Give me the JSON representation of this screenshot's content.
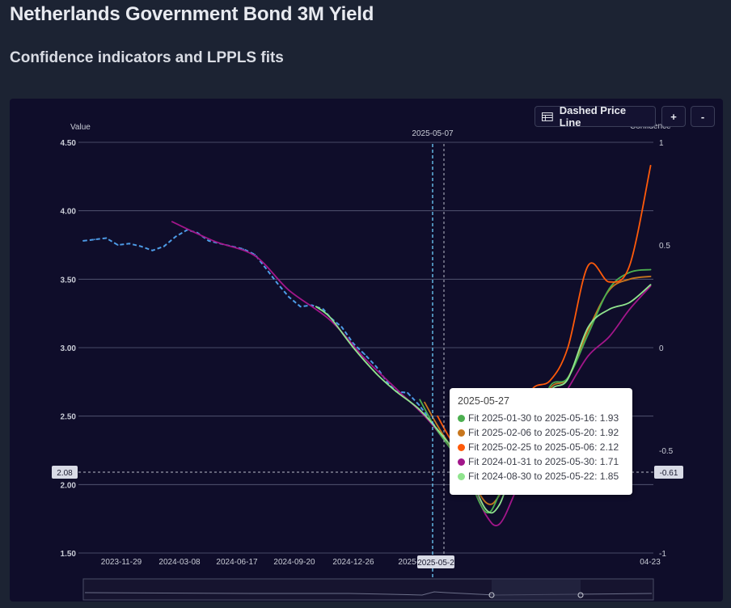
{
  "page": {
    "title": "Netherlands Government Bond 3M Yield",
    "subtitle": "Confidence indicators and LPPLS fits"
  },
  "toolbar": {
    "dashed_label": "Dashed Price Line",
    "zoom_in_label": "+",
    "zoom_out_label": "-",
    "dashed_icon": "table-icon"
  },
  "crosshair": {
    "top_date": "2025-05-07",
    "bottom_date": "2025-05-2",
    "left_value": "2.08",
    "right_value": "-0.61"
  },
  "tooltip": {
    "date": "2025-05-27",
    "rows": [
      {
        "label": "Fit 2025-01-30 to 2025-05-16: 1.93",
        "color": "#4caf50"
      },
      {
        "label": "Fit 2025-02-06 to 2025-05-20: 1.92",
        "color": "#c8771e"
      },
      {
        "label": "Fit 2025-02-25 to 2025-05-06: 2.12",
        "color": "#ff5a0a"
      },
      {
        "label": "Fit 2024-01-31 to 2025-05-30: 1.71",
        "color": "#a2168a"
      },
      {
        "label": "Fit 2024-08-30 to 2025-05-22: 1.85",
        "color": "#90e48e"
      }
    ]
  },
  "chart_data": {
    "type": "line",
    "title": "Netherlands Government Bond 3M Yield",
    "subtitle": "Confidence indicators and LPPLS fits",
    "ylabel": "Value",
    "y2label": "Confidence",
    "ylim": [
      1.5,
      4.5
    ],
    "y2lim": [
      -1,
      1
    ],
    "y_ticks": [
      "4.50",
      "4.00",
      "3.50",
      "3.00",
      "2.50",
      "2.00",
      "1.50"
    ],
    "y2_ticks": [
      "1",
      "0.5",
      "0",
      "-0.5",
      "-1"
    ],
    "x_ticks": [
      "2023-11-29",
      "2024-03-08",
      "2024-06-17",
      "2024-09-20",
      "2024-12-26",
      "2025-0",
      "04-23"
    ],
    "grid": true,
    "legend": "tooltip",
    "series": [
      {
        "name": "Price",
        "color": "#4d9be6",
        "style": "dashed",
        "points": [
          [
            "2023-09-22",
            3.78
          ],
          [
            "2023-10-09",
            3.79
          ],
          [
            "2023-10-26",
            3.8
          ],
          [
            "2023-11-12",
            3.75
          ],
          [
            "2023-11-29",
            3.76
          ],
          [
            "2023-12-16",
            3.74
          ],
          [
            "2024-01-02",
            3.71
          ],
          [
            "2024-01-19",
            3.74
          ],
          [
            "2024-02-05",
            3.81
          ],
          [
            "2024-02-22",
            3.86
          ],
          [
            "2024-03-08",
            3.84
          ],
          [
            "2024-03-25",
            3.78
          ],
          [
            "2024-04-11",
            3.76
          ],
          [
            "2024-04-28",
            3.74
          ],
          [
            "2024-05-15",
            3.72
          ],
          [
            "2024-06-01",
            3.68
          ],
          [
            "2024-06-17",
            3.58
          ],
          [
            "2024-07-04",
            3.47
          ],
          [
            "2024-07-21",
            3.37
          ],
          [
            "2024-08-07",
            3.3
          ],
          [
            "2024-08-24",
            3.31
          ],
          [
            "2024-09-10",
            3.28
          ],
          [
            "2024-09-20",
            3.22
          ],
          [
            "2024-10-07",
            3.15
          ],
          [
            "2024-10-24",
            3.03
          ],
          [
            "2024-11-10",
            2.95
          ],
          [
            "2024-11-27",
            2.86
          ],
          [
            "2024-12-14",
            2.74
          ],
          [
            "2024-12-26",
            2.68
          ],
          [
            "2025-01-12",
            2.67
          ],
          [
            "2025-01-29",
            2.58
          ],
          [
            "2025-02-15",
            2.47
          ],
          [
            "2025-03-04",
            2.35
          ],
          [
            "2025-03-21",
            2.25
          ],
          [
            "2025-04-07",
            2.14
          ]
        ]
      },
      {
        "name": "Fit 2025-01-30 to 2025-05-16",
        "color": "#4caf50",
        "points": [
          [
            "2025-01-30",
            2.62
          ],
          [
            "2025-02-20",
            2.43
          ],
          [
            "2025-03-15",
            2.27
          ],
          [
            "2025-04-07",
            2.1
          ],
          [
            "2025-05-07",
            1.8
          ],
          [
            "2025-05-27",
            1.93
          ],
          [
            "2025-06-20",
            2.25
          ],
          [
            "2025-07-15",
            2.4
          ],
          [
            "2025-08-10",
            2.72
          ],
          [
            "2025-09-05",
            2.78
          ],
          [
            "2025-10-05",
            3.1
          ],
          [
            "2025-11-05",
            3.43
          ],
          [
            "2025-12-05",
            3.55
          ],
          [
            "2026-01-05",
            3.57
          ]
        ]
      },
      {
        "name": "Fit 2025-02-06 to 2025-05-20",
        "color": "#c8771e",
        "points": [
          [
            "2025-02-06",
            2.6
          ],
          [
            "2025-02-25",
            2.43
          ],
          [
            "2025-03-15",
            2.29
          ],
          [
            "2025-04-07",
            2.13
          ],
          [
            "2025-05-07",
            1.87
          ],
          [
            "2025-05-27",
            1.92
          ],
          [
            "2025-06-20",
            2.2
          ],
          [
            "2025-07-15",
            2.36
          ],
          [
            "2025-08-10",
            2.7
          ],
          [
            "2025-09-05",
            2.78
          ],
          [
            "2025-10-05",
            3.13
          ],
          [
            "2025-11-05",
            3.42
          ],
          [
            "2025-12-05",
            3.5
          ],
          [
            "2026-01-05",
            3.52
          ]
        ]
      },
      {
        "name": "Fit 2025-02-25 to 2025-05-06",
        "color": "#ff5a0a",
        "points": [
          [
            "2025-02-25",
            2.5
          ],
          [
            "2025-03-15",
            2.34
          ],
          [
            "2025-04-07",
            2.17
          ],
          [
            "2025-05-07",
            2.04
          ],
          [
            "2025-05-27",
            2.12
          ],
          [
            "2025-06-20",
            2.46
          ],
          [
            "2025-07-15",
            2.7
          ],
          [
            "2025-08-10",
            2.76
          ],
          [
            "2025-09-05",
            3.0
          ],
          [
            "2025-10-05",
            3.6
          ],
          [
            "2025-11-05",
            3.48
          ],
          [
            "2025-12-05",
            3.6
          ],
          [
            "2026-01-05",
            4.33
          ]
        ]
      },
      {
        "name": "Fit 2024-01-31 to 2025-05-30",
        "color": "#a2168a",
        "points": [
          [
            "2024-01-31",
            3.92
          ],
          [
            "2024-04-01",
            3.78
          ],
          [
            "2024-06-01",
            3.67
          ],
          [
            "2024-07-21",
            3.42
          ],
          [
            "2024-09-20",
            3.2
          ],
          [
            "2024-11-10",
            2.92
          ],
          [
            "2024-12-26",
            2.7
          ],
          [
            "2025-02-15",
            2.45
          ],
          [
            "2025-04-07",
            2.1
          ],
          [
            "2025-05-07",
            1.78
          ],
          [
            "2025-05-27",
            1.71
          ],
          [
            "2025-06-20",
            1.95
          ],
          [
            "2025-07-15",
            2.25
          ],
          [
            "2025-08-10",
            2.5
          ],
          [
            "2025-09-05",
            2.7
          ],
          [
            "2025-10-05",
            2.94
          ],
          [
            "2025-11-05",
            3.08
          ],
          [
            "2025-12-05",
            3.28
          ],
          [
            "2026-01-05",
            3.45
          ]
        ]
      },
      {
        "name": "Fit 2024-08-30 to 2025-05-22",
        "color": "#90e48e",
        "points": [
          [
            "2024-08-30",
            3.3
          ],
          [
            "2024-09-20",
            3.22
          ],
          [
            "2024-10-24",
            3.0
          ],
          [
            "2024-11-27",
            2.81
          ],
          [
            "2024-12-26",
            2.68
          ],
          [
            "2025-01-29",
            2.55
          ],
          [
            "2025-03-04",
            2.36
          ],
          [
            "2025-04-07",
            2.14
          ],
          [
            "2025-05-07",
            1.82
          ],
          [
            "2025-05-27",
            1.85
          ],
          [
            "2025-06-20",
            2.17
          ],
          [
            "2025-07-15",
            2.33
          ],
          [
            "2025-08-10",
            2.68
          ],
          [
            "2025-09-05",
            2.77
          ],
          [
            "2025-10-05",
            3.15
          ],
          [
            "2025-11-05",
            3.28
          ],
          [
            "2025-12-05",
            3.33
          ],
          [
            "2026-01-05",
            3.46
          ]
        ]
      }
    ]
  }
}
